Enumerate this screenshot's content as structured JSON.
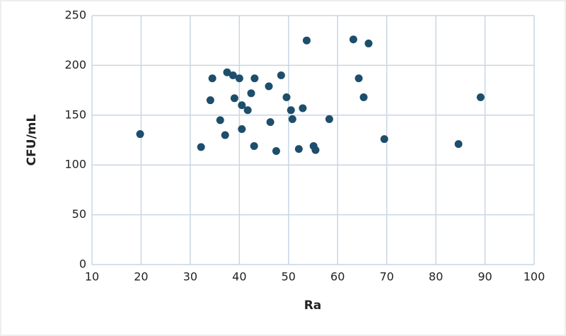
{
  "chart_data": {
    "type": "scatter",
    "x_label": "Ra",
    "y_label": "CFU/mL",
    "series": [
      {
        "color": "#1d4e6b",
        "x": [
          19.8,
          32.2,
          34.1,
          34.5,
          36.1,
          37.1,
          37.5,
          38.7,
          39.0,
          40.0,
          40.5,
          40.5,
          41.7,
          42.4,
          43.0,
          43.1,
          46.0,
          46.3,
          47.5,
          48.5,
          49.6,
          50.5,
          50.8,
          52.1,
          52.9,
          53.7,
          55.1,
          55.5,
          58.3,
          63.2,
          64.3,
          65.3,
          66.3,
          69.5,
          84.6,
          89.1
        ],
        "values": [
          131,
          118,
          165,
          187,
          145,
          130,
          193,
          190,
          167,
          187,
          160,
          136,
          155,
          172,
          119,
          187,
          179,
          143,
          114,
          190,
          168,
          155,
          146,
          116,
          157,
          225,
          119,
          115,
          146,
          226,
          187,
          168,
          222,
          126,
          121,
          168
        ]
      }
    ],
    "xlim": [
      10,
      100
    ],
    "xticks": [
      10,
      20,
      30,
      40,
      50,
      60,
      70,
      80,
      90,
      100
    ],
    "ylim": [
      0,
      250
    ],
    "yticks": [
      0,
      50,
      100,
      150,
      200,
      250
    ],
    "grid": true
  }
}
